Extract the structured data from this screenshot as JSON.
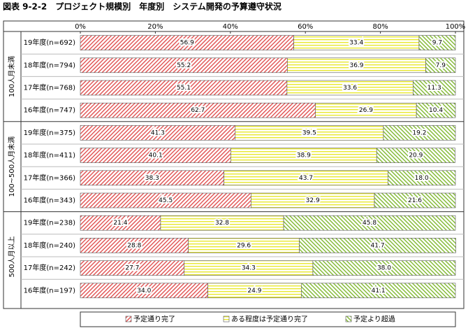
{
  "chart_data": {
    "type": "stacked-bar-horizontal",
    "title": "図表 9-2-2　プロジェクト規模別　年度別　システム開発の予算遵守状況",
    "groups": [
      {
        "label": "100人月未満",
        "categories": [
          "19年度(n=692)",
          "18年度(n=794)",
          "17年度(n=768)",
          "16年度(n=747)"
        ]
      },
      {
        "label": "100~500人月未満",
        "categories": [
          "19年度(n=375)",
          "18年度(n=411)",
          "17年度(n=366)",
          "16年度(n=343)"
        ]
      },
      {
        "label": "500人月以上",
        "categories": [
          "19年度(n=238)",
          "18年度(n=240)",
          "17年度(n=242)",
          "16年度(n=197)"
        ]
      }
    ],
    "series": [
      {
        "name": "予定通り完了",
        "color": "#e05050",
        "hatch": "backslash",
        "values": [
          56.9,
          55.2,
          55.1,
          62.7,
          41.3,
          40.1,
          38.3,
          45.5,
          21.4,
          28.8,
          27.7,
          34.0
        ],
        "value_labels": [
          "56.9",
          "55.2",
          "55.1",
          "62.7",
          "41.3",
          "40.1",
          "38.3",
          "45.5",
          "21.4",
          "28.8",
          "27.7",
          "34.0"
        ]
      },
      {
        "name": "ある程度は予定通り完了",
        "color": "#e8e830",
        "hatch": "horizontal",
        "values": [
          33.4,
          36.9,
          33.6,
          26.9,
          39.5,
          38.9,
          43.7,
          32.9,
          32.8,
          29.6,
          34.3,
          24.9
        ],
        "value_labels": [
          "33.4",
          "36.9",
          "33.6",
          "26.9",
          "39.5",
          "38.9",
          "43.7",
          "32.9",
          "32.8",
          "29.6",
          "34.3",
          "24.9"
        ]
      },
      {
        "name": "予定より超過",
        "color": "#80b830",
        "hatch": "slash",
        "values": [
          9.7,
          7.9,
          11.3,
          10.4,
          19.2,
          20.9,
          18.0,
          21.6,
          45.8,
          41.7,
          38.0,
          41.1
        ],
        "value_labels": [
          "9.7",
          "7.9",
          "11.3",
          "10.4",
          "19.2",
          "20.9",
          "18.0",
          "21.6",
          "45.8",
          "41.7",
          "38.0",
          "41.1"
        ]
      }
    ],
    "xlim": [
      0,
      100
    ],
    "xticks": [
      {
        "value": 0,
        "label": "0%"
      },
      {
        "value": 20,
        "label": "20%"
      },
      {
        "value": 40,
        "label": "40%"
      },
      {
        "value": 60,
        "label": "60%"
      },
      {
        "value": 80,
        "label": "80%"
      },
      {
        "value": 100,
        "label": "100%"
      }
    ]
  }
}
